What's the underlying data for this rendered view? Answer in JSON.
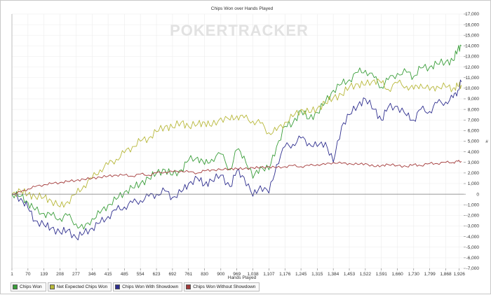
{
  "chart_data": {
    "type": "line",
    "title": "Chips Won over Hands Played",
    "xlabel": "Hands Played",
    "ylabel": "",
    "watermark": "POKERTRACKER",
    "xlim": [
      1,
      1945
    ],
    "ylim": [
      -7000,
      17000
    ],
    "x_ticks": [
      "1",
      "70",
      "139",
      "208",
      "277",
      "346",
      "415",
      "485",
      "554",
      "623",
      "692",
      "761",
      "830",
      "900",
      "969",
      "1,038",
      "1,107",
      "1,176",
      "1,245",
      "1,315",
      "1,384",
      "1,453",
      "1,522",
      "1,591",
      "1,660",
      "1,730",
      "1,799",
      "1,868",
      "1,926"
    ],
    "x_tick_values": [
      1,
      70,
      139,
      208,
      277,
      346,
      415,
      485,
      554,
      623,
      692,
      761,
      830,
      900,
      969,
      1038,
      1107,
      1176,
      1245,
      1315,
      1384,
      1453,
      1522,
      1591,
      1660,
      1730,
      1799,
      1868,
      1926
    ],
    "y_ticks": [
      "-7,000",
      "-6,000",
      "-5,000",
      "-4,000",
      "-3,000",
      "-2,000",
      "-1,000",
      "0",
      "1,000",
      "2,000",
      "3,000",
      "4,000",
      "5,000",
      "6,000",
      "7,000",
      "8,000",
      "9,000",
      "10,000",
      "11,000",
      "12,000",
      "13,000",
      "14,000",
      "15,000",
      "16,000",
      "17,000"
    ],
    "y_tick_values": [
      -7000,
      -6000,
      -5000,
      -4000,
      -3000,
      -2000,
      -1000,
      0,
      1000,
      2000,
      3000,
      4000,
      5000,
      6000,
      7000,
      8000,
      9000,
      10000,
      11000,
      12000,
      13000,
      14000,
      15000,
      16000,
      17000
    ],
    "grid": true,
    "legend_position": "bottom-left",
    "series": [
      {
        "name": "Chips Won",
        "color": "#3a9e3a",
        "x": [
          1,
          40,
          70,
          100,
          139,
          170,
          208,
          240,
          277,
          310,
          346,
          380,
          415,
          450,
          485,
          520,
          554,
          590,
          623,
          660,
          692,
          730,
          761,
          800,
          830,
          860,
          900,
          940,
          969,
          1000,
          1038,
          1070,
          1107,
          1140,
          1176,
          1210,
          1245,
          1280,
          1315,
          1350,
          1384,
          1420,
          1453,
          1490,
          1522,
          1560,
          1591,
          1620,
          1660,
          1700,
          1730,
          1760,
          1799,
          1830,
          1868,
          1900,
          1920,
          1935
        ],
        "y": [
          0,
          -200,
          -800,
          -1500,
          -1800,
          -2000,
          -2300,
          -2000,
          -2800,
          -3300,
          -2300,
          -1800,
          -1000,
          -500,
          200,
          600,
          1000,
          1500,
          2000,
          2300,
          1800,
          2300,
          3200,
          3500,
          2800,
          3300,
          3800,
          2300,
          4200,
          3600,
          1500,
          2600,
          2300,
          4500,
          6400,
          6700,
          7900,
          7100,
          7700,
          8700,
          9800,
          10400,
          10800,
          11500,
          11700,
          11000,
          10100,
          10800,
          11400,
          11500,
          11100,
          11900,
          12000,
          12300,
          12500,
          12600,
          13700,
          14000
        ]
      },
      {
        "name": "Net Expected Chips Won",
        "color": "#b8b83a",
        "x": [
          1,
          40,
          70,
          100,
          139,
          170,
          208,
          240,
          277,
          310,
          346,
          380,
          415,
          450,
          485,
          520,
          554,
          590,
          623,
          660,
          692,
          730,
          761,
          800,
          830,
          860,
          900,
          940,
          969,
          1000,
          1038,
          1070,
          1107,
          1140,
          1176,
          1210,
          1245,
          1280,
          1315,
          1350,
          1384,
          1420,
          1453,
          1490,
          1522,
          1560,
          1591,
          1620,
          1660,
          1700,
          1730,
          1760,
          1799,
          1830,
          1868,
          1900,
          1920,
          1935
        ],
        "y": [
          0,
          300,
          0,
          -200,
          -300,
          -600,
          -1200,
          -700,
          0,
          800,
          1500,
          2300,
          2800,
          3300,
          3900,
          4500,
          5000,
          5300,
          5900,
          6400,
          6300,
          6800,
          6400,
          6600,
          6800,
          6400,
          7200,
          7000,
          7400,
          7200,
          6900,
          6700,
          5800,
          6000,
          6800,
          7300,
          8000,
          7700,
          8100,
          8600,
          9100,
          9400,
          10100,
          10400,
          10300,
          10800,
          10500,
          9900,
          10500,
          10200,
          9900,
          10400,
          9800,
          10200,
          10100,
          10000,
          10200,
          10300
        ]
      },
      {
        "name": "Chips Won With Showdown",
        "color": "#2f2f8f",
        "x": [
          1,
          40,
          70,
          100,
          139,
          170,
          208,
          240,
          277,
          310,
          346,
          380,
          415,
          450,
          485,
          520,
          554,
          590,
          623,
          660,
          692,
          730,
          761,
          800,
          830,
          860,
          900,
          940,
          969,
          1000,
          1038,
          1070,
          1107,
          1140,
          1176,
          1210,
          1245,
          1280,
          1315,
          1350,
          1384,
          1420,
          1453,
          1490,
          1522,
          1560,
          1591,
          1620,
          1660,
          1700,
          1730,
          1760,
          1799,
          1830,
          1868,
          1900,
          1920,
          1935
        ],
        "y": [
          0,
          -400,
          -1300,
          -2500,
          -2900,
          -3200,
          -3600,
          -3400,
          -4100,
          -3700,
          -3200,
          -2700,
          -2100,
          -1500,
          -1200,
          -800,
          -600,
          -200,
          0,
          300,
          -300,
          200,
          1000,
          1500,
          900,
          1300,
          1800,
          700,
          2200,
          1600,
          -200,
          800,
          100,
          2800,
          4500,
          4700,
          5300,
          4800,
          4500,
          4900,
          3000,
          6400,
          7500,
          8400,
          9000,
          8000,
          7000,
          8200,
          8300,
          7400,
          7000,
          8000,
          7800,
          8600,
          8700,
          9100,
          9800,
          10600
        ]
      },
      {
        "name": "Chips Won Without Showdown",
        "color": "#a33a3a",
        "x": [
          1,
          40,
          70,
          100,
          139,
          170,
          208,
          240,
          277,
          310,
          346,
          380,
          415,
          450,
          485,
          520,
          554,
          590,
          623,
          660,
          692,
          730,
          761,
          800,
          830,
          860,
          900,
          940,
          969,
          1000,
          1038,
          1070,
          1107,
          1140,
          1176,
          1210,
          1245,
          1280,
          1315,
          1350,
          1384,
          1420,
          1453,
          1490,
          1522,
          1560,
          1591,
          1620,
          1660,
          1700,
          1730,
          1760,
          1799,
          1830,
          1868,
          1900,
          1920,
          1935
        ],
        "y": [
          0,
          200,
          500,
          700,
          900,
          1000,
          1100,
          1200,
          1300,
          1400,
          1500,
          1600,
          1700,
          1800,
          1800,
          1700,
          1900,
          1800,
          2000,
          2100,
          2100,
          2200,
          2100,
          2000,
          2200,
          2300,
          2300,
          2400,
          2400,
          2400,
          2500,
          2500,
          2600,
          2500,
          2600,
          2700,
          2600,
          2700,
          2800,
          2800,
          3000,
          2900,
          2900,
          2800,
          2900,
          2600,
          2700,
          2800,
          2700,
          2600,
          2800,
          2700,
          2900,
          2900,
          3000,
          3000,
          3100,
          3100
        ]
      }
    ]
  }
}
